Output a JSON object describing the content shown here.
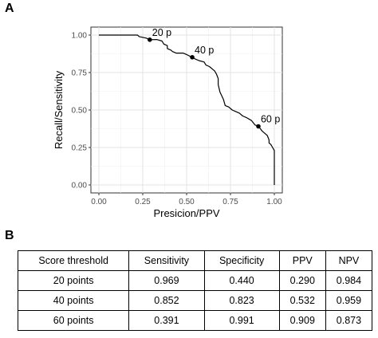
{
  "panels": {
    "a": "A",
    "b": "B"
  },
  "chart_data": {
    "type": "line",
    "xlabel": "Presicion/PPV",
    "ylabel": "Recall/Sensitivity",
    "xlim": [
      0,
      1
    ],
    "ylim": [
      0,
      1
    ],
    "x_ticks": [
      "0.00",
      "0.25",
      "0.50",
      "0.75",
      "1.00"
    ],
    "y_ticks": [
      "0.00",
      "0.25",
      "0.50",
      "0.75",
      "1.00"
    ],
    "grid": true,
    "series": [
      {
        "x": [
          0.0,
          0.22,
          0.23,
          0.27,
          0.29,
          0.33,
          0.36,
          0.37,
          0.39,
          0.39,
          0.41,
          0.42,
          0.44,
          0.48,
          0.5,
          0.53,
          0.55,
          0.57,
          0.6,
          0.61,
          0.63,
          0.65,
          0.66,
          0.67,
          0.68,
          0.68,
          0.69,
          0.71,
          0.72,
          0.74,
          0.76,
          0.78,
          0.8,
          0.82,
          0.84,
          0.87,
          0.89,
          0.91,
          0.93,
          0.95,
          0.96,
          0.97,
          0.97,
          0.98,
          0.99,
          1.0,
          1.0
        ],
        "y": [
          1.0,
          1.0,
          0.99,
          0.98,
          0.969,
          0.97,
          0.96,
          0.94,
          0.93,
          0.91,
          0.9,
          0.89,
          0.88,
          0.88,
          0.87,
          0.852,
          0.84,
          0.83,
          0.82,
          0.8,
          0.79,
          0.77,
          0.76,
          0.74,
          0.71,
          0.67,
          0.62,
          0.57,
          0.53,
          0.52,
          0.5,
          0.49,
          0.48,
          0.46,
          0.45,
          0.43,
          0.4,
          0.391,
          0.36,
          0.34,
          0.33,
          0.3,
          0.28,
          0.27,
          0.25,
          0.23,
          0.0
        ]
      }
    ],
    "annotations": [
      {
        "label": "20 p",
        "x": 0.29,
        "y": 0.969
      },
      {
        "label": "40 p",
        "x": 0.532,
        "y": 0.852
      },
      {
        "label": "60 p",
        "x": 0.909,
        "y": 0.391
      }
    ]
  },
  "table": {
    "headers": [
      "Score threshold",
      "Sensitivity",
      "Specificity",
      "PPV",
      "NPV"
    ],
    "rows": [
      [
        "20 points",
        "0.969",
        "0.440",
        "0.290",
        "0.984"
      ],
      [
        "40 points",
        "0.852",
        "0.823",
        "0.532",
        "0.959"
      ],
      [
        "60 points",
        "0.391",
        "0.991",
        "0.909",
        "0.873"
      ]
    ]
  }
}
